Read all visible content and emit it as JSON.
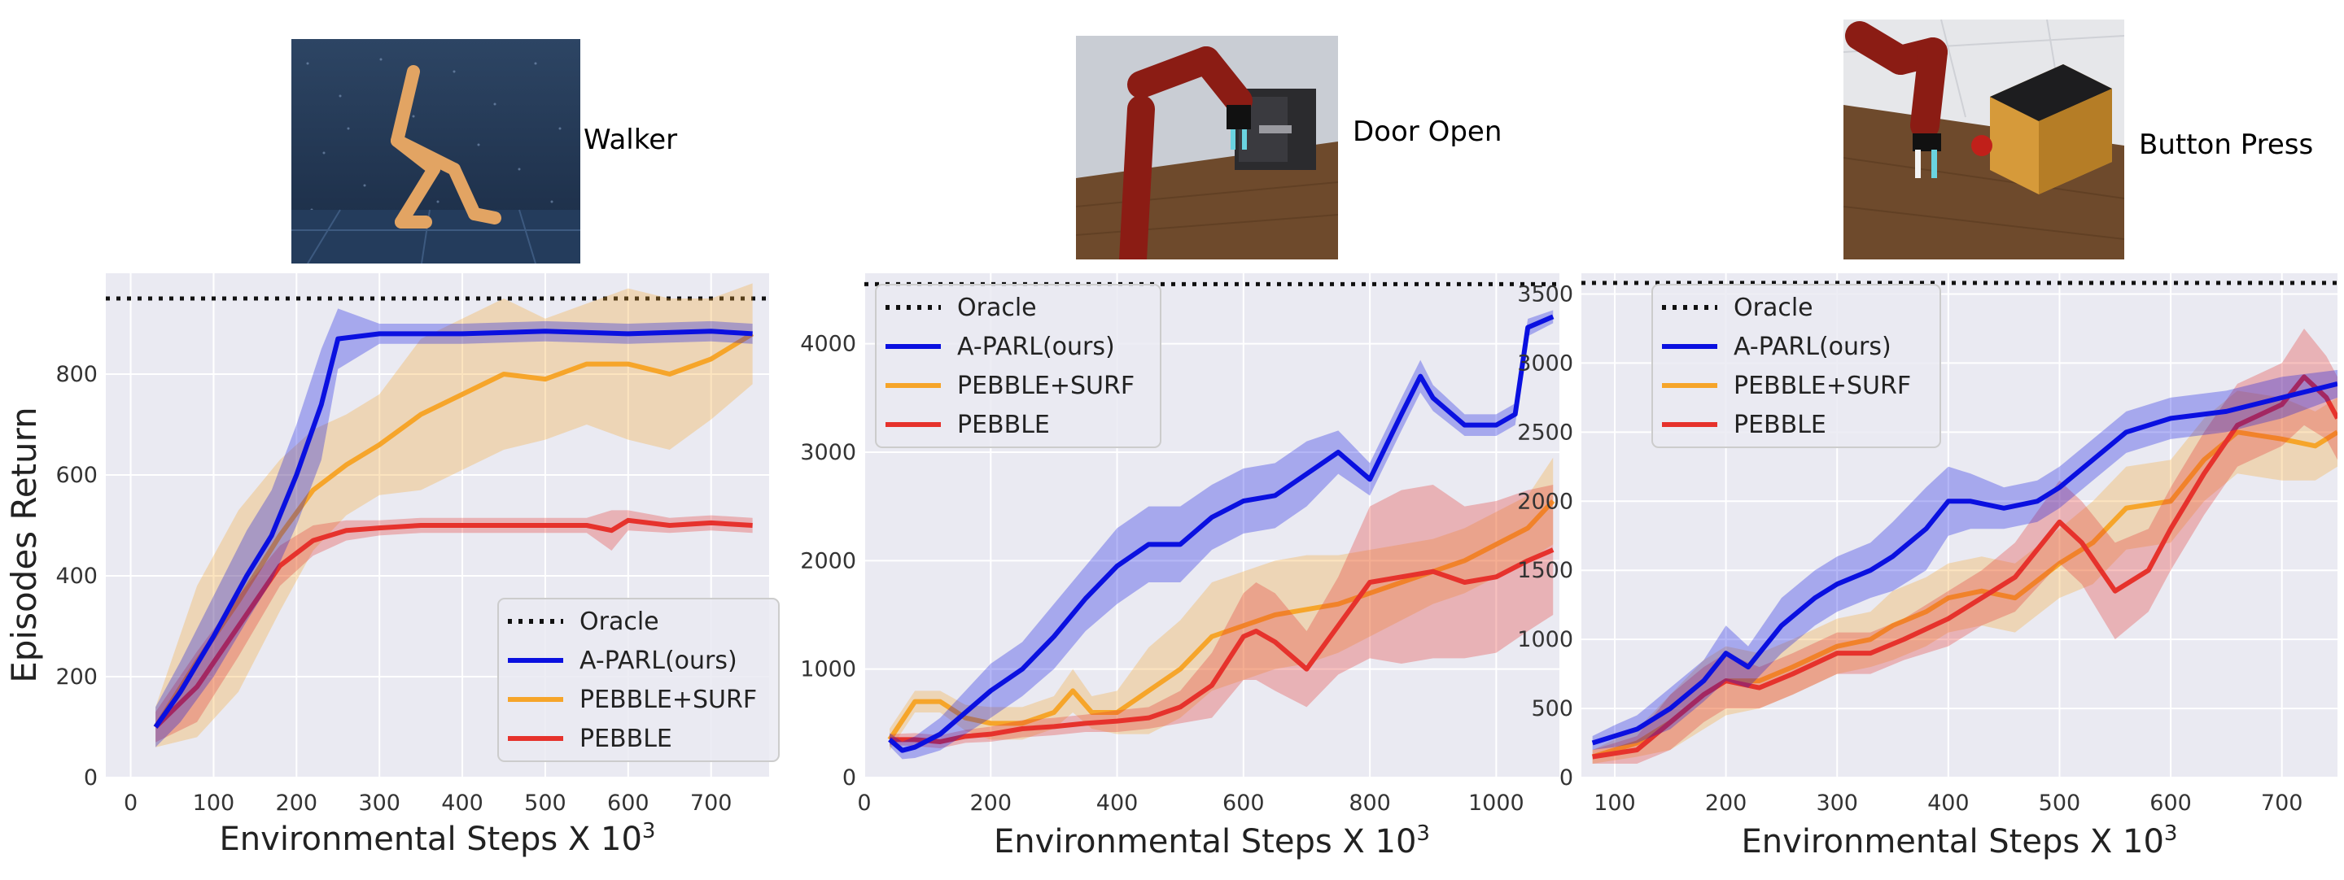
{
  "figure": {
    "ylabel": "Episodes Return",
    "panels": [
      {
        "task_label": "Walker",
        "image_desc": "walker-robot-image"
      },
      {
        "task_label": "Door Open",
        "image_desc": "door-open-robot-arm-image"
      },
      {
        "task_label": "Button Press",
        "image_desc": "button-press-robot-arm-image"
      }
    ]
  },
  "colors": {
    "oracle": "#111111",
    "apparl": "#0a10e0",
    "pebble_surf": "#f6a52a",
    "pebble": "#e6322c",
    "plot_bg": "#eaeaf2",
    "grid": "#ffffff"
  },
  "chart_data": [
    {
      "type": "line",
      "title": "Walker",
      "xlabel": "Environmental Steps X 10",
      "xlabel_sup": "3",
      "ylabel": "Episodes Return",
      "xlim": [
        -30,
        770
      ],
      "ylim": [
        0,
        1000
      ],
      "xticks": [
        0,
        100,
        200,
        300,
        400,
        500,
        600,
        700
      ],
      "yticks": [
        0,
        200,
        400,
        600,
        800
      ],
      "grid": true,
      "legend_position": "lower-right",
      "oracle": 950,
      "series": [
        {
          "name": "Oracle",
          "key": "oracle"
        },
        {
          "name": "A-PARL(ours)",
          "key": "apparl",
          "x": [
            30,
            60,
            100,
            140,
            170,
            200,
            230,
            250,
            300,
            400,
            500,
            600,
            700,
            750
          ],
          "y": [
            100,
            170,
            280,
            400,
            480,
            600,
            740,
            870,
            880,
            880,
            885,
            880,
            885,
            880
          ],
          "band": [
            40,
            60,
            80,
            90,
            90,
            100,
            110,
            60,
            20,
            20,
            20,
            20,
            20,
            20
          ]
        },
        {
          "name": "PEBBLE+SURF",
          "key": "pebble_surf",
          "x": [
            30,
            80,
            130,
            180,
            220,
            260,
            300,
            350,
            400,
            450,
            500,
            550,
            600,
            650,
            700,
            750
          ],
          "y": [
            100,
            230,
            350,
            480,
            570,
            620,
            660,
            720,
            760,
            800,
            790,
            820,
            820,
            800,
            830,
            880
          ],
          "band": [
            40,
            150,
            180,
            150,
            120,
            100,
            100,
            150,
            150,
            150,
            120,
            120,
            150,
            150,
            120,
            100
          ]
        },
        {
          "name": "PEBBLE",
          "key": "pebble",
          "x": [
            30,
            80,
            130,
            180,
            220,
            260,
            300,
            350,
            400,
            450,
            500,
            550,
            580,
            600,
            650,
            700,
            750
          ],
          "y": [
            100,
            180,
            300,
            420,
            470,
            490,
            495,
            500,
            500,
            500,
            500,
            500,
            490,
            510,
            500,
            505,
            500
          ],
          "band": [
            30,
            70,
            60,
            40,
            30,
            20,
            15,
            15,
            15,
            15,
            15,
            15,
            40,
            20,
            15,
            15,
            15
          ]
        }
      ]
    },
    {
      "type": "line",
      "title": "Door Open",
      "xlabel": "Environmental Steps X 10",
      "xlabel_sup": "3",
      "xlim": [
        0,
        1100
      ],
      "ylim": [
        0,
        4650
      ],
      "xticks": [
        0,
        200,
        400,
        600,
        800,
        1000
      ],
      "yticks": [
        0,
        1000,
        2000,
        3000,
        4000
      ],
      "grid": true,
      "legend_position": "top-left",
      "oracle": 4550,
      "series": [
        {
          "name": "Oracle",
          "key": "oracle"
        },
        {
          "name": "A-PARL(ours)",
          "key": "apparl",
          "x": [
            40,
            60,
            80,
            120,
            160,
            200,
            250,
            300,
            350,
            400,
            450,
            500,
            550,
            600,
            650,
            700,
            750,
            800,
            850,
            880,
            900,
            950,
            1000,
            1030,
            1050,
            1090
          ],
          "y": [
            350,
            250,
            280,
            400,
            600,
            800,
            1000,
            1300,
            1650,
            1950,
            2150,
            2150,
            2400,
            2550,
            2600,
            2800,
            3000,
            2750,
            3350,
            3700,
            3500,
            3250,
            3250,
            3350,
            4150,
            4250
          ],
          "band": [
            60,
            80,
            100,
            150,
            200,
            250,
            250,
            300,
            300,
            350,
            350,
            350,
            300,
            300,
            300,
            300,
            200,
            150,
            150,
            150,
            120,
            100,
            100,
            100,
            80,
            60
          ]
        },
        {
          "name": "PEBBLE+SURF",
          "key": "pebble_surf",
          "x": [
            40,
            80,
            120,
            160,
            200,
            250,
            300,
            330,
            360,
            400,
            450,
            500,
            550,
            600,
            650,
            700,
            750,
            800,
            850,
            900,
            950,
            1000,
            1050,
            1090
          ],
          "y": [
            350,
            700,
            700,
            550,
            500,
            500,
            600,
            800,
            600,
            600,
            800,
            1000,
            1300,
            1400,
            1500,
            1550,
            1600,
            1700,
            1800,
            1900,
            2000,
            2150,
            2300,
            2550
          ],
          "band": [
            100,
            100,
            100,
            120,
            150,
            150,
            150,
            200,
            150,
            200,
            400,
            450,
            500,
            500,
            500,
            500,
            450,
            400,
            350,
            300,
            300,
            300,
            300,
            400
          ]
        },
        {
          "name": "PEBBLE",
          "key": "pebble",
          "x": [
            40,
            80,
            120,
            160,
            200,
            250,
            300,
            350,
            400,
            450,
            500,
            550,
            600,
            620,
            650,
            700,
            750,
            800,
            850,
            900,
            950,
            1000,
            1050,
            1090
          ],
          "y": [
            350,
            350,
            330,
            380,
            400,
            450,
            470,
            500,
            520,
            550,
            650,
            850,
            1300,
            1350,
            1250,
            1000,
            1400,
            1800,
            1850,
            1900,
            1800,
            1850,
            2000,
            2100
          ],
          "band": [
            50,
            60,
            60,
            60,
            70,
            80,
            80,
            80,
            100,
            100,
            150,
            300,
            400,
            450,
            450,
            350,
            450,
            700,
            800,
            800,
            700,
            700,
            650,
            600
          ]
        }
      ]
    },
    {
      "type": "line",
      "title": "Button Press",
      "xlabel": "Environmental Steps X 10",
      "xlabel_sup": "3",
      "xlim": [
        70,
        750
      ],
      "ylim": [
        0,
        3650
      ],
      "xticks": [
        100,
        200,
        300,
        400,
        500,
        600,
        700
      ],
      "yticks": [
        0,
        500,
        1000,
        1500,
        2000,
        2500,
        3000,
        3500
      ],
      "grid": true,
      "legend_position": "top-left",
      "oracle": 3580,
      "series": [
        {
          "name": "Oracle",
          "key": "oracle"
        },
        {
          "name": "A-PARL(ours)",
          "key": "apparl",
          "x": [
            80,
            100,
            120,
            150,
            180,
            200,
            220,
            250,
            280,
            300,
            330,
            350,
            380,
            400,
            420,
            450,
            480,
            500,
            530,
            560,
            600,
            650,
            700,
            750
          ],
          "y": [
            250,
            300,
            350,
            500,
            700,
            900,
            800,
            1100,
            1300,
            1400,
            1500,
            1600,
            1800,
            2000,
            2000,
            1950,
            2000,
            2100,
            2300,
            2500,
            2600,
            2650,
            2750,
            2850
          ],
          "band": [
            50,
            80,
            100,
            150,
            150,
            200,
            150,
            200,
            200,
            200,
            200,
            250,
            300,
            250,
            200,
            150,
            150,
            150,
            150,
            150,
            150,
            150,
            150,
            100
          ]
        },
        {
          "name": "PEBBLE+SURF",
          "key": "pebble_surf",
          "x": [
            80,
            120,
            150,
            180,
            200,
            230,
            260,
            300,
            330,
            350,
            380,
            400,
            430,
            460,
            500,
            530,
            560,
            600,
            630,
            660,
            700,
            730,
            750
          ],
          "y": [
            150,
            250,
            400,
            600,
            700,
            700,
            800,
            950,
            1000,
            1100,
            1200,
            1300,
            1350,
            1300,
            1550,
            1700,
            1950,
            2000,
            2300,
            2500,
            2450,
            2400,
            2500
          ],
          "band": [
            50,
            100,
            200,
            250,
            250,
            200,
            200,
            200,
            200,
            250,
            250,
            250,
            250,
            250,
            250,
            300,
            300,
            300,
            300,
            300,
            300,
            250,
            250
          ]
        },
        {
          "name": "PEBBLE",
          "key": "pebble",
          "x": [
            80,
            120,
            150,
            180,
            200,
            230,
            260,
            300,
            330,
            360,
            400,
            430,
            460,
            500,
            520,
            550,
            580,
            600,
            630,
            660,
            700,
            720,
            740,
            750
          ],
          "y": [
            150,
            200,
            400,
            600,
            700,
            650,
            750,
            900,
            900,
            1000,
            1150,
            1300,
            1450,
            1850,
            1700,
            1350,
            1500,
            1800,
            2200,
            2550,
            2700,
            2900,
            2750,
            2600
          ],
          "band": [
            50,
            100,
            200,
            200,
            200,
            150,
            150,
            150,
            150,
            150,
            200,
            200,
            250,
            300,
            300,
            350,
            300,
            300,
            300,
            300,
            300,
            350,
            300,
            300
          ]
        }
      ]
    }
  ]
}
